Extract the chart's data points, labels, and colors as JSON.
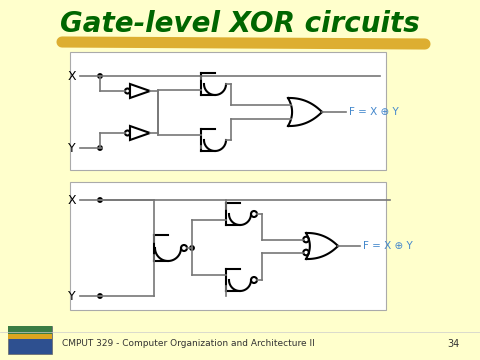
{
  "title": "Gate-level XOR circuits",
  "title_color": "#006600",
  "title_fontsize": 20,
  "bg_color": "#FFFFCC",
  "box_color": "#FFFFFF",
  "line_color": "#777777",
  "gate_color": "#000000",
  "label_color": "#4488CC",
  "footer_text": "CMPUT 329 - Computer Organization and Architecture II",
  "footer_page": "34",
  "underline_color": "#DAA520",
  "formula1": "F = X ⊕ Y",
  "formula2": "F = X ⊕ Y"
}
